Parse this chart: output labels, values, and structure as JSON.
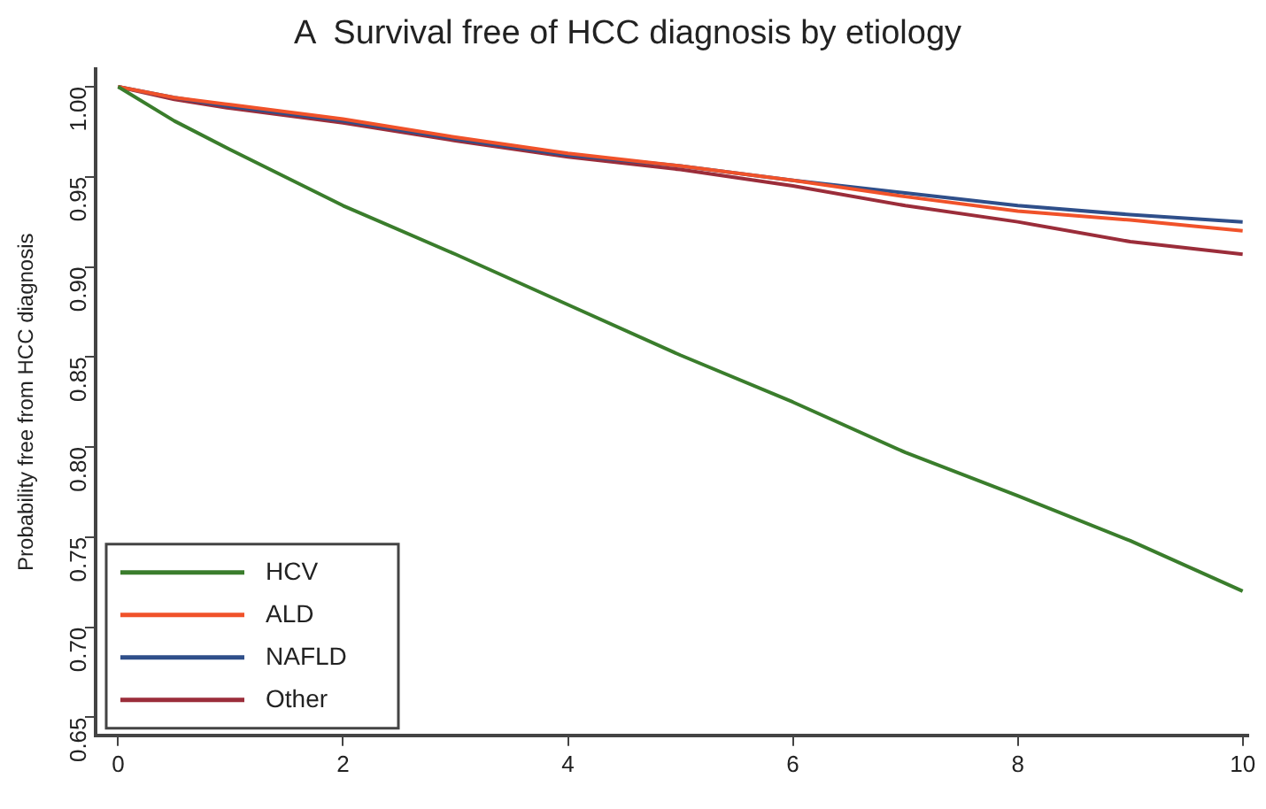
{
  "chart_data": {
    "type": "line",
    "title": "A  Survival free of HCC diagnosis by etiology",
    "ylabel": "Probability free from HCC diagnosis",
    "xlim": [
      -0.2,
      10.05
    ],
    "xticks": [
      0,
      2,
      4,
      6,
      8,
      10
    ],
    "ylim": [
      0.64,
      1.01
    ],
    "yticks": [
      {
        "value": 0.65,
        "label": "0.65"
      },
      {
        "value": 0.7,
        "label": "0.70"
      },
      {
        "value": 0.75,
        "label": "0.75"
      },
      {
        "value": 0.8,
        "label": "0.80"
      },
      {
        "value": 0.85,
        "label": "0.85"
      },
      {
        "value": 0.9,
        "label": "0.90"
      },
      {
        "value": 0.95,
        "label": "0.95"
      },
      {
        "value": 1.0,
        "label": "1.00"
      }
    ],
    "grid": false,
    "legend": "bottom left",
    "marker": "none",
    "line_style": "solid",
    "x": [
      0,
      0.5,
      1,
      2,
      3,
      4,
      5,
      6,
      7,
      8,
      9,
      10
    ],
    "series": [
      {
        "name": "HCV",
        "color": "#3a7d2c",
        "values": [
          1.0,
          0.981,
          0.965,
          0.934,
          0.907,
          0.879,
          0.851,
          0.825,
          0.797,
          0.773,
          0.748,
          0.72
        ]
      },
      {
        "name": "ALD",
        "color": "#f0522a",
        "values": [
          1.0,
          0.994,
          0.99,
          0.982,
          0.972,
          0.963,
          0.956,
          0.948,
          0.939,
          0.931,
          0.926,
          0.92
        ]
      },
      {
        "name": "NAFLD",
        "color": "#2f4f8a",
        "values": [
          1.0,
          0.994,
          0.989,
          0.981,
          0.971,
          0.962,
          0.956,
          0.948,
          0.941,
          0.934,
          0.929,
          0.925
        ]
      },
      {
        "name": "Other",
        "color": "#9b2d3a",
        "values": [
          1.0,
          0.993,
          0.988,
          0.98,
          0.97,
          0.961,
          0.954,
          0.945,
          0.934,
          0.925,
          0.914,
          0.907
        ]
      }
    ]
  }
}
